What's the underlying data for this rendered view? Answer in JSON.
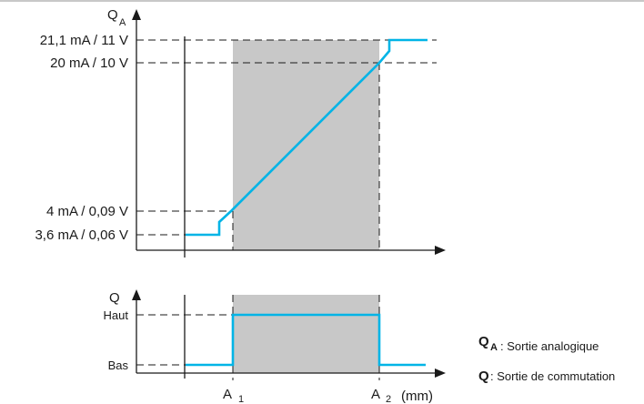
{
  "upper_plot": {
    "y_axis_symbol": "Q",
    "y_axis_subscript": "A",
    "levels": [
      {
        "label": "21,1 mA / 11 V"
      },
      {
        "label": "20 mA / 10 V"
      },
      {
        "label": "4 mA / 0,09 V"
      },
      {
        "label": "3,6 mA / 0,06 V"
      }
    ]
  },
  "lower_plot": {
    "y_axis_symbol": "Q",
    "levels": [
      {
        "label": "Haut"
      },
      {
        "label": "Bas"
      }
    ]
  },
  "x_axis": {
    "a1_symbol": "A",
    "a1_subscript": "1",
    "a2_symbol": "A",
    "a2_subscript": "2",
    "unit": "(mm)"
  },
  "legend": [
    {
      "symbol": "Q",
      "subscript": "A",
      "text": ": Sortie analogique"
    },
    {
      "symbol": "Q",
      "subscript": "",
      "text": ": Sortie de commutation"
    }
  ],
  "colors": {
    "signal": "#00b4e6",
    "window_fill": "#c8c8c8",
    "ink": "#1a1a1a"
  }
}
